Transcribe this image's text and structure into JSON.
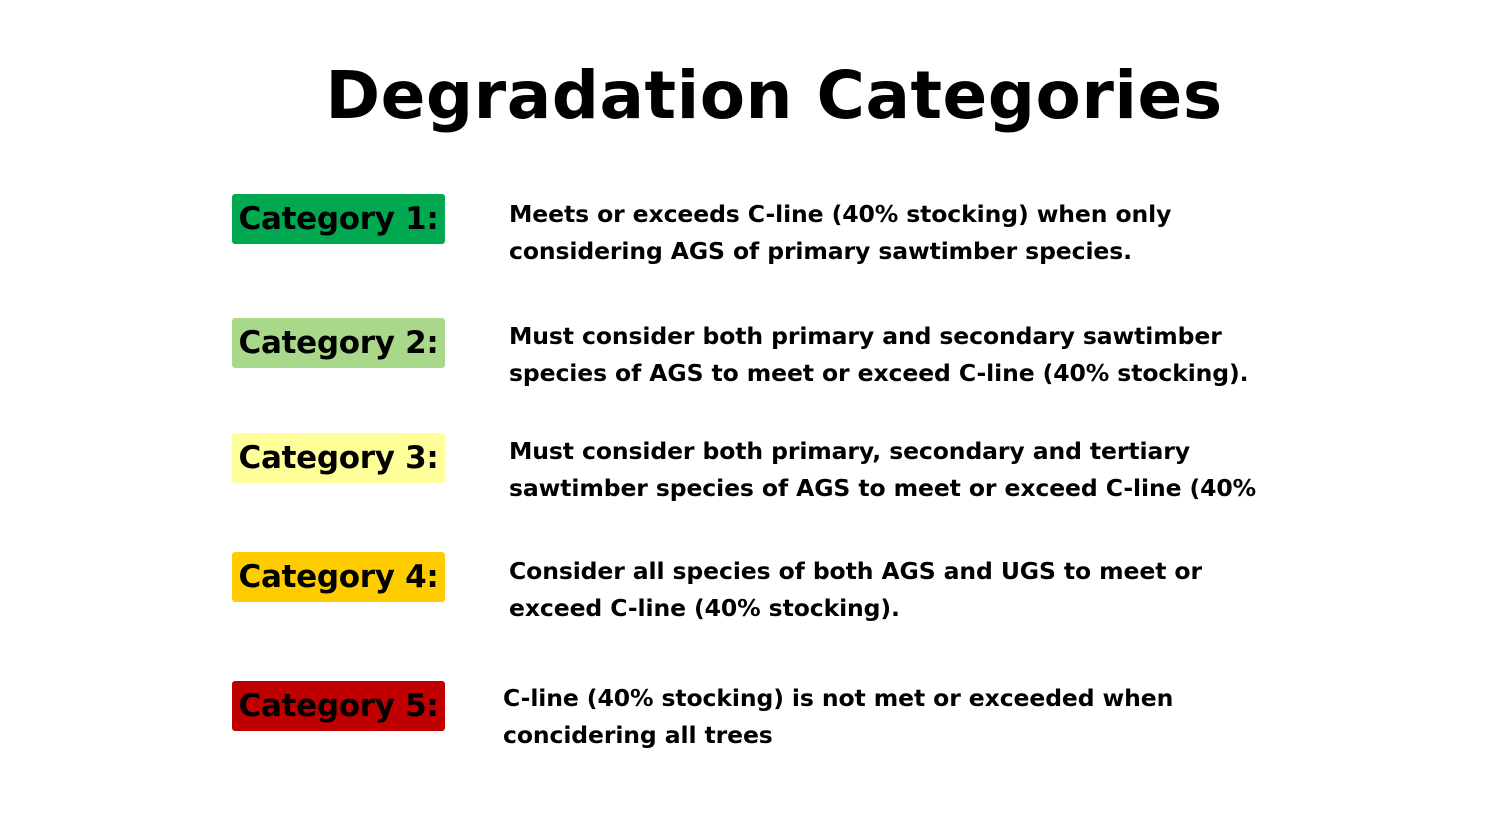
{
  "title": "Degradation Categories",
  "categories": [
    {
      "label": "Category 1:",
      "color": "#00a84f",
      "description_lines": [
        "Meets or exceeds C-line (40% stocking) when only",
        "considering AGS of primary sawtimber species."
      ]
    },
    {
      "label": "Category 2:",
      "color": "#a9d88b",
      "description_lines": [
        "Must consider both primary and secondary sawtimber",
        "species of AGS to meet or exceed C-line (40% stocking)."
      ]
    },
    {
      "label": "Category 3:",
      "color": "#ffff99",
      "description_lines": [
        "Must consider both primary, secondary and tertiary",
        "sawtimber species of AGS to meet or exceed C-line (40%"
      ]
    },
    {
      "label": "Category 4:",
      "color": "#ffcc00",
      "description_lines": [
        "Consider all species of both AGS and UGS to meet or",
        "exceed C-line (40% stocking)."
      ]
    },
    {
      "label": "Category 5:",
      "color": "#c00000",
      "description_lines": [
        "C-line (40% stocking) is not met or exceeded when",
        "concidering all trees"
      ]
    }
  ]
}
